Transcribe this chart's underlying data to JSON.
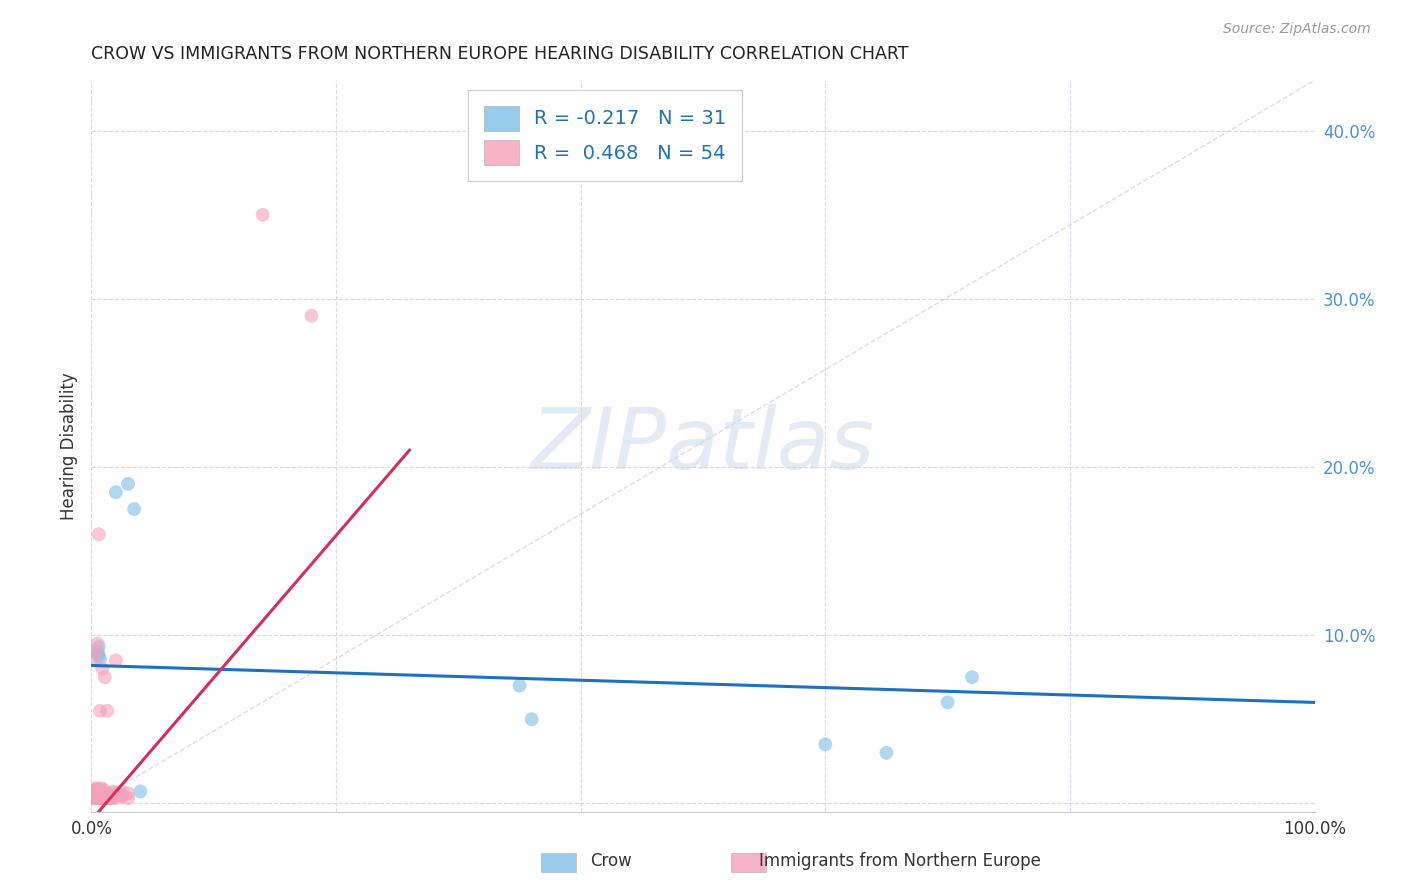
{
  "title": "CROW VS IMMIGRANTS FROM NORTHERN EUROPE HEARING DISABILITY CORRELATION CHART",
  "source": "Source: ZipAtlas.com",
  "ylabel": "Hearing Disability",
  "xlim": [
    0.0,
    1.0
  ],
  "ylim": [
    -0.005,
    0.43
  ],
  "crow_color": "#7fbfe8",
  "immigrants_color": "#f4a0b8",
  "crow_trend_color": "#2070c0",
  "immigrants_trend_color": "#d03060",
  "diagonal_color": "#c8c8d8",
  "crow_R": -0.217,
  "crow_N": 31,
  "immigrants_R": 0.468,
  "immigrants_N": 54,
  "crow_points": [
    [
      0.001,
      0.005
    ],
    [
      0.002,
      0.004
    ],
    [
      0.002,
      0.007
    ],
    [
      0.003,
      0.003
    ],
    [
      0.003,
      0.006
    ],
    [
      0.004,
      0.005
    ],
    [
      0.004,
      0.008
    ],
    [
      0.005,
      0.004
    ],
    [
      0.005,
      0.007
    ],
    [
      0.005,
      0.09
    ],
    [
      0.006,
      0.088
    ],
    [
      0.006,
      0.093
    ],
    [
      0.007,
      0.003
    ],
    [
      0.007,
      0.086
    ],
    [
      0.008,
      0.005
    ],
    [
      0.009,
      0.004
    ],
    [
      0.01,
      0.003
    ],
    [
      0.01,
      0.006
    ],
    [
      0.012,
      0.005
    ],
    [
      0.015,
      0.003
    ],
    [
      0.02,
      0.185
    ],
    [
      0.025,
      0.005
    ],
    [
      0.03,
      0.19
    ],
    [
      0.035,
      0.175
    ],
    [
      0.04,
      0.007
    ],
    [
      0.35,
      0.07
    ],
    [
      0.36,
      0.05
    ],
    [
      0.6,
      0.035
    ],
    [
      0.65,
      0.03
    ],
    [
      0.7,
      0.06
    ],
    [
      0.72,
      0.075
    ]
  ],
  "immigrants_points": [
    [
      0.001,
      0.003
    ],
    [
      0.001,
      0.005
    ],
    [
      0.002,
      0.004
    ],
    [
      0.002,
      0.006
    ],
    [
      0.002,
      0.007
    ],
    [
      0.003,
      0.003
    ],
    [
      0.003,
      0.005
    ],
    [
      0.003,
      0.008
    ],
    [
      0.003,
      0.085
    ],
    [
      0.004,
      0.004
    ],
    [
      0.004,
      0.006
    ],
    [
      0.004,
      0.009
    ],
    [
      0.004,
      0.09
    ],
    [
      0.005,
      0.003
    ],
    [
      0.005,
      0.006
    ],
    [
      0.005,
      0.008
    ],
    [
      0.005,
      0.095
    ],
    [
      0.006,
      0.004
    ],
    [
      0.006,
      0.007
    ],
    [
      0.006,
      0.16
    ],
    [
      0.007,
      0.003
    ],
    [
      0.007,
      0.005
    ],
    [
      0.007,
      0.008
    ],
    [
      0.007,
      0.055
    ],
    [
      0.008,
      0.004
    ],
    [
      0.008,
      0.006
    ],
    [
      0.008,
      0.009
    ],
    [
      0.009,
      0.003
    ],
    [
      0.009,
      0.005
    ],
    [
      0.009,
      0.08
    ],
    [
      0.01,
      0.004
    ],
    [
      0.01,
      0.006
    ],
    [
      0.01,
      0.008
    ],
    [
      0.011,
      0.003
    ],
    [
      0.011,
      0.075
    ],
    [
      0.012,
      0.004
    ],
    [
      0.012,
      0.006
    ],
    [
      0.013,
      0.003
    ],
    [
      0.013,
      0.055
    ],
    [
      0.015,
      0.004
    ],
    [
      0.015,
      0.006
    ],
    [
      0.016,
      0.003
    ],
    [
      0.016,
      0.005
    ],
    [
      0.018,
      0.004
    ],
    [
      0.018,
      0.007
    ],
    [
      0.02,
      0.003
    ],
    [
      0.02,
      0.006
    ],
    [
      0.02,
      0.085
    ],
    [
      0.025,
      0.004
    ],
    [
      0.025,
      0.007
    ],
    [
      0.03,
      0.003
    ],
    [
      0.03,
      0.006
    ],
    [
      0.14,
      0.35
    ],
    [
      0.18,
      0.29
    ]
  ],
  "crow_trend_x": [
    0.0,
    1.0
  ],
  "crow_trend_y": [
    0.082,
    0.06
  ],
  "immigrants_trend_x": [
    0.0,
    0.26
  ],
  "immigrants_trend_y": [
    -0.01,
    0.21
  ]
}
